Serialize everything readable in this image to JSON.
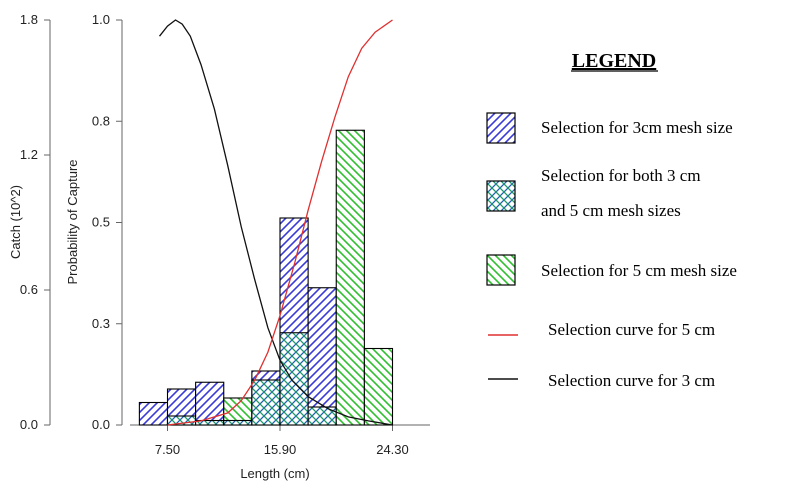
{
  "chart_data": {
    "type": "bar",
    "xlabel": "Length (cm)",
    "ylabel_left": "Catch (10^2)",
    "ylabel_right": "Probability of Capture",
    "x_ticks": [
      "7.50",
      "15.90",
      "24.30"
    ],
    "x_tick_values": [
      7.5,
      15.9,
      24.3
    ],
    "catch_ticks": [
      "0.0",
      "0.6",
      "1.2",
      "1.8"
    ],
    "catch_tick_values": [
      0.0,
      0.6,
      1.2,
      1.8
    ],
    "prob_ticks": [
      "0.0",
      "0.3",
      "0.5",
      "0.8",
      "1.0"
    ],
    "prob_tick_values": [
      0.0,
      0.25,
      0.5,
      0.75,
      1.0
    ],
    "catch_range": [
      0,
      1.8
    ],
    "prob_range": [
      0,
      1.0
    ],
    "x_range": [
      4.7,
      27.1
    ],
    "bin_width": 2.1,
    "bins": [
      {
        "start": 5.4,
        "mesh3": 0.1,
        "both": 0.0,
        "mesh5": 0.0
      },
      {
        "start": 7.5,
        "mesh3": 0.16,
        "both": 0.04,
        "mesh5": 0.0
      },
      {
        "start": 9.6,
        "mesh3": 0.19,
        "both": 0.02,
        "mesh5": 0.0
      },
      {
        "start": 11.7,
        "mesh3": 0.0,
        "both": 0.02,
        "mesh5": 0.12
      },
      {
        "start": 13.8,
        "mesh3": 0.24,
        "both": 0.2,
        "mesh5": 0.0
      },
      {
        "start": 15.9,
        "mesh3": 0.92,
        "both": 0.41,
        "mesh5": 0.0
      },
      {
        "start": 18.0,
        "mesh3": 0.61,
        "both": 0.08,
        "mesh5": 0.0
      },
      {
        "start": 20.1,
        "mesh3": 0.0,
        "both": 0.0,
        "mesh5": 1.31
      },
      {
        "start": 22.2,
        "mesh3": 0.0,
        "both": 0.0,
        "mesh5": 0.34
      }
    ],
    "curve_3cm": {
      "x": [
        6.9,
        7.5,
        8.1,
        8.6,
        9.2,
        10.0,
        11.0,
        12.0,
        13.0,
        14.0,
        15.0,
        15.9,
        16.8,
        18.0,
        19.5,
        21.0,
        22.5,
        24.3
      ],
      "y": [
        0.96,
        0.985,
        1.0,
        0.99,
        0.96,
        0.89,
        0.78,
        0.64,
        0.49,
        0.36,
        0.24,
        0.16,
        0.11,
        0.07,
        0.04,
        0.02,
        0.01,
        0.0
      ]
    },
    "curve_5cm": {
      "x": [
        7.5,
        10.0,
        12.0,
        13.0,
        14.0,
        15.0,
        15.9,
        17.0,
        18.0,
        19.0,
        20.0,
        21.0,
        22.0,
        23.0,
        24.3
      ],
      "y": [
        0.0,
        0.01,
        0.03,
        0.06,
        0.11,
        0.18,
        0.27,
        0.4,
        0.53,
        0.65,
        0.76,
        0.86,
        0.93,
        0.97,
        1.0
      ]
    },
    "colors": {
      "mesh3": "#3b3bd6",
      "both": "#1e8a8a",
      "mesh5": "#2fc02f",
      "curve_5cm": "#e03030",
      "curve_3cm": "#111111"
    }
  },
  "legend": {
    "title": "LEGEND",
    "items": [
      {
        "key": "mesh3",
        "label_lines": [
          "Selection for 3cm mesh size"
        ]
      },
      {
        "key": "both",
        "label_lines": [
          "Selection for both 3 cm",
          "and 5 cm mesh sizes"
        ]
      },
      {
        "key": "mesh5",
        "label_lines": [
          "Selection for 5 cm mesh size"
        ]
      },
      {
        "key": "curve5",
        "label_lines": [
          "Selection curve for 5 cm"
        ]
      },
      {
        "key": "curve3",
        "label_lines": [
          "Selection curve for 3 cm"
        ]
      }
    ]
  }
}
